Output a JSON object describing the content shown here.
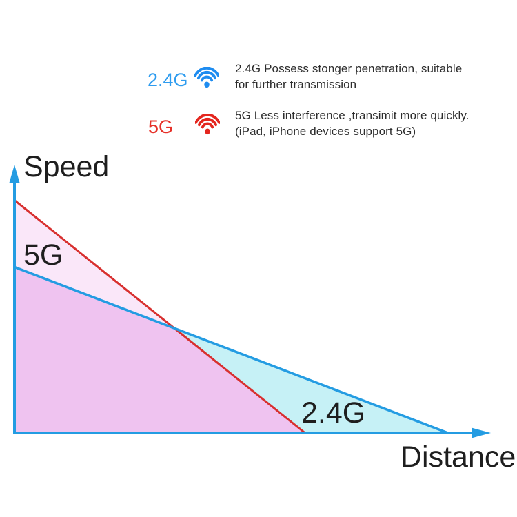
{
  "page": {
    "background": "#ffffff"
  },
  "legend": {
    "items": [
      {
        "label": "2.4G",
        "label_color": "#2E9CEF",
        "icon": "wifi-signal",
        "icon_color": "#1E8CF0",
        "desc_line1": "2.4G Possess stonger penetration, suitable",
        "desc_line2": "for further transmission"
      },
      {
        "label": "5G",
        "label_color": "#E63028",
        "icon": "wifi-signal",
        "icon_color": "#E4261E",
        "desc_line1": "5G Less interference ,transimit more quickly.",
        "desc_line2": "(iPad, iPhone devices support 5G)"
      }
    ]
  },
  "chart": {
    "y_axis_label": "Speed",
    "x_axis_label": "Distance",
    "axis_color": "#249CE2",
    "label_color": "#1E1E1E",
    "region_labels": {
      "five_g": "5G",
      "two_four_g": "2.4G"
    }
  },
  "chart_data": {
    "type": "line",
    "xlabel": "Distance",
    "ylabel": "Speed",
    "axes_quantitative": false,
    "gridlines": false,
    "legend_position": "top",
    "x_range_norm": [
      0,
      1
    ],
    "y_range_norm": [
      0,
      1
    ],
    "series": [
      {
        "name": "5G",
        "line_color": "#D8302F",
        "fill_color": "#FAE7F9",
        "points_norm": [
          [
            0,
            0.87
          ],
          [
            0.61,
            0
          ]
        ]
      },
      {
        "name": "2.4G",
        "line_color": "#249CE2",
        "fill_color": "#C6F1F6",
        "points_norm": [
          [
            0,
            0.62
          ],
          [
            0.91,
            0
          ]
        ]
      }
    ],
    "overlap_fill_color": "#EFC3F0",
    "annotations": [
      "5G",
      "2.4G"
    ]
  }
}
